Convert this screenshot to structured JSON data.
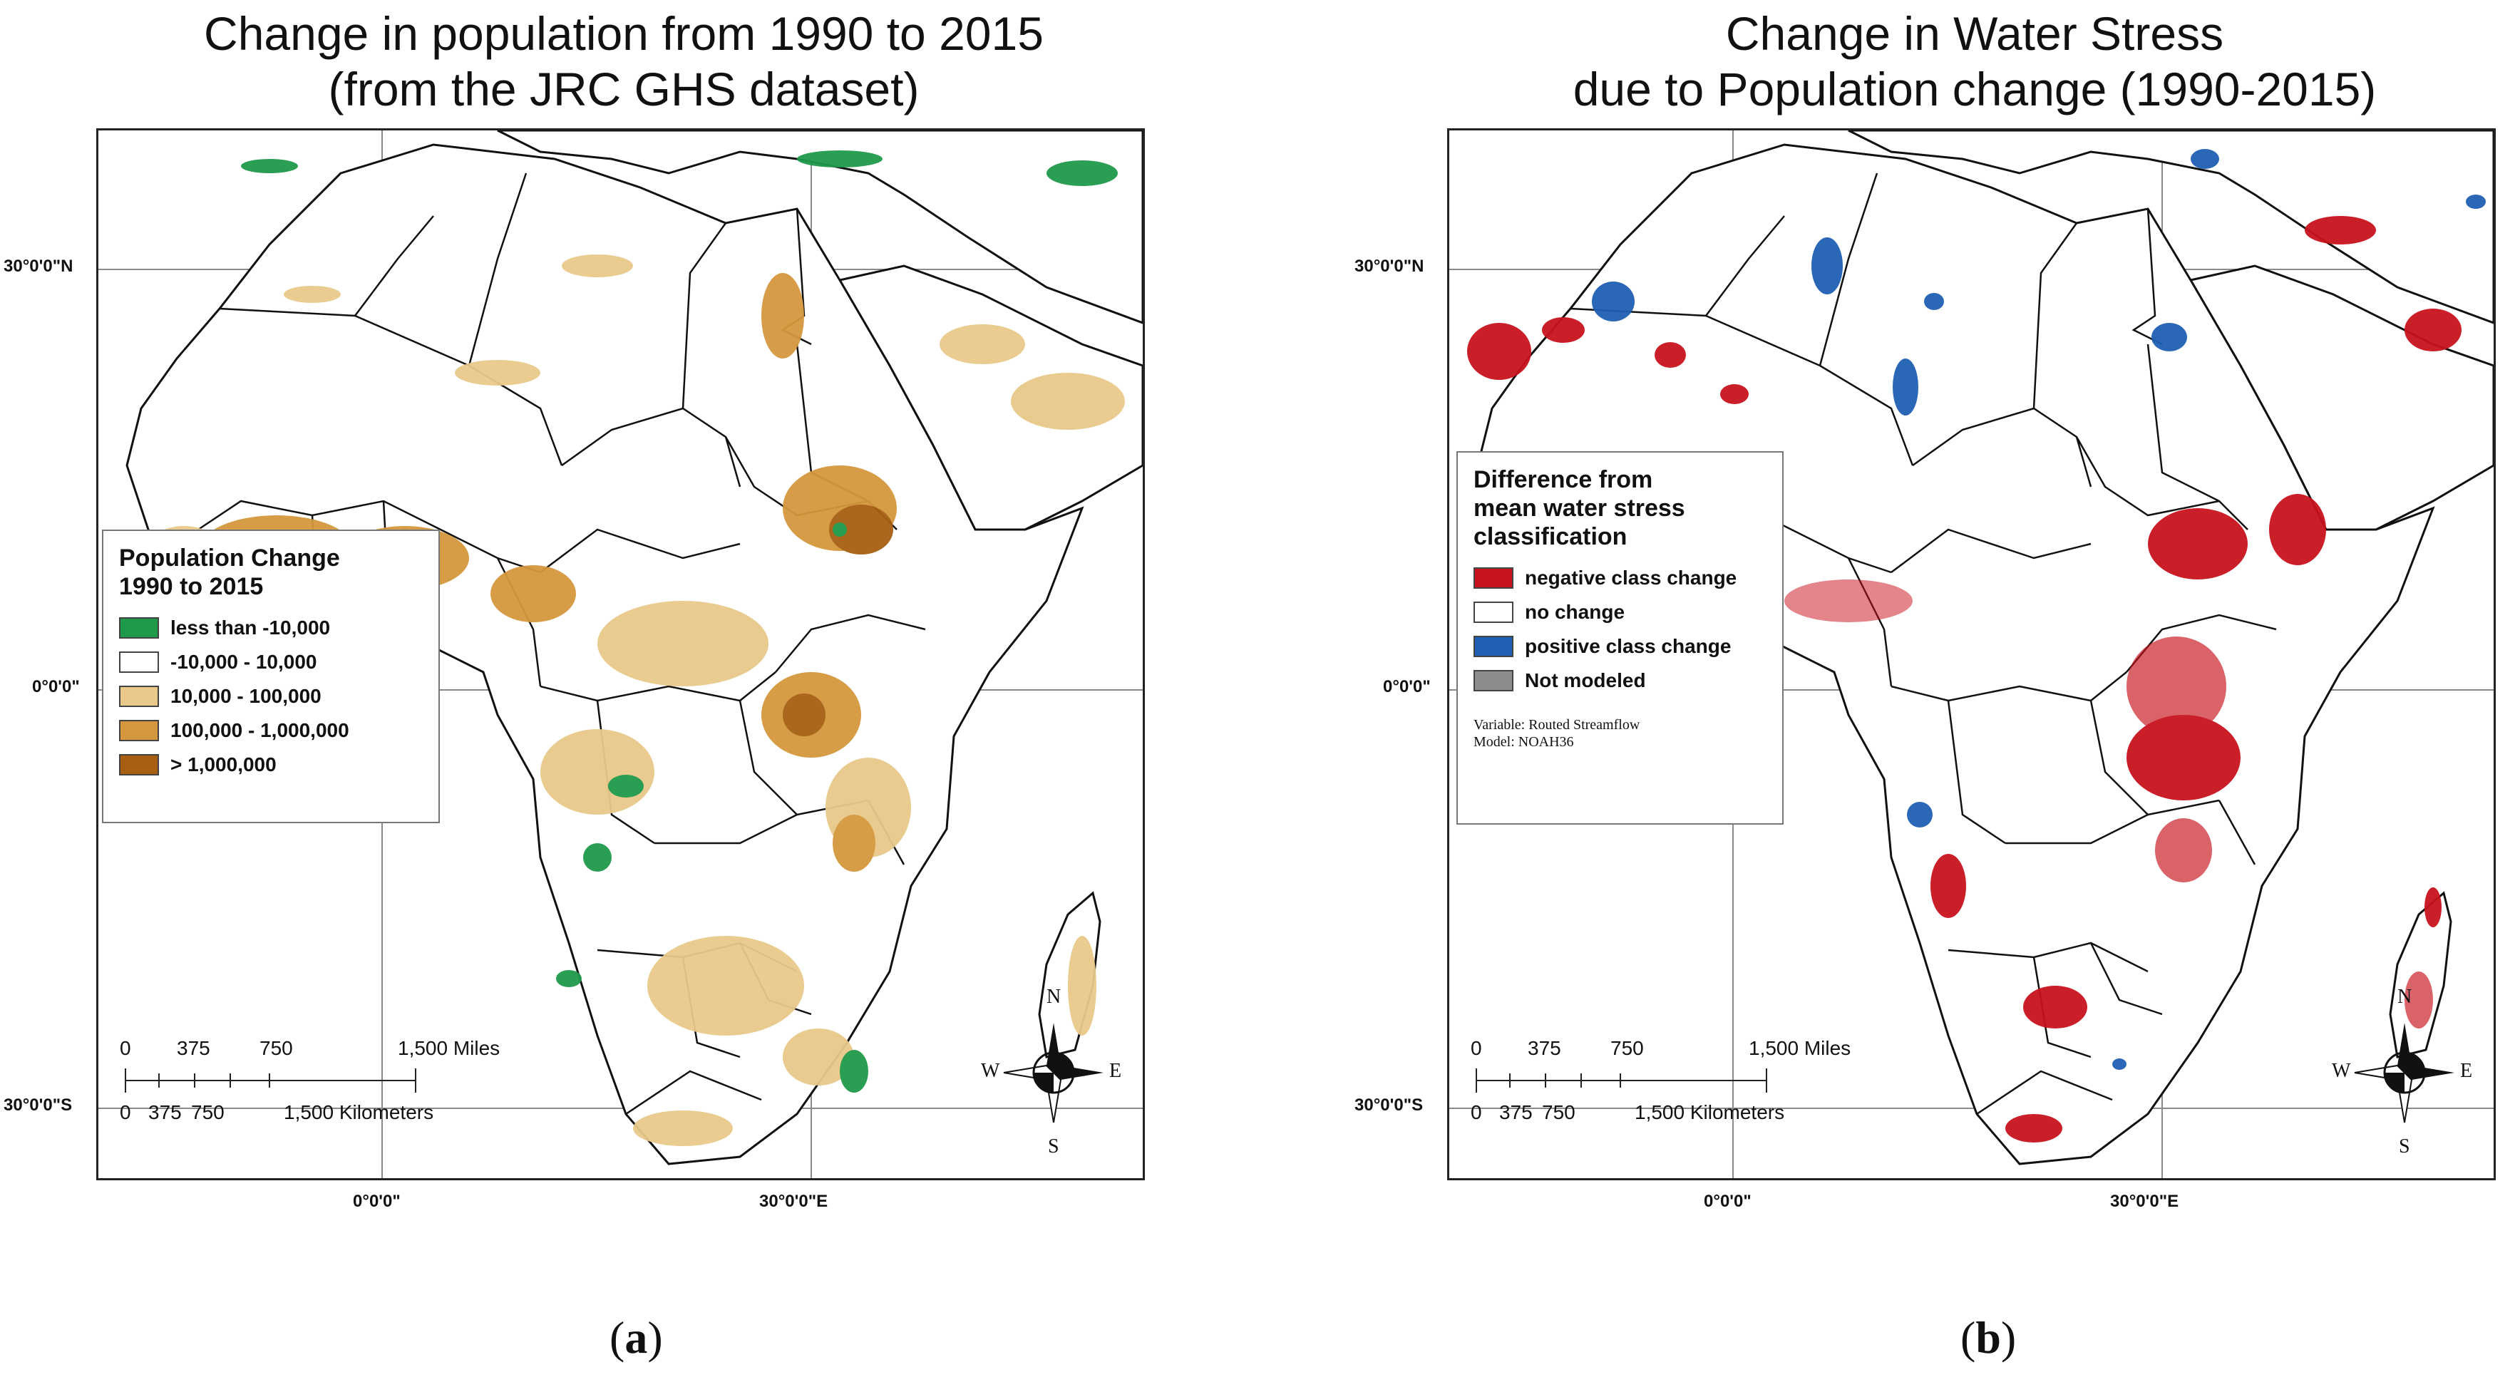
{
  "panels": [
    {
      "title_line1": "Change in population from 1990 to 2015",
      "title_line2": "(from the JRC GHS dataset)",
      "legend": {
        "title_line1": "Population Change",
        "title_line2": "1990 to 2015",
        "items": [
          {
            "label": "less than -10,000",
            "color": "#1f9a4a"
          },
          {
            "label": "-10,000 - 10,000",
            "color": "#ffffff"
          },
          {
            "label": "10,000 - 100,000",
            "color": "#e9c98a"
          },
          {
            "label": "100,000 - 1,000,000",
            "color": "#d4973d"
          },
          {
            "label": "> 1,000,000",
            "color": "#a85f12"
          }
        ]
      },
      "caption": "a"
    },
    {
      "title_line1": "Change in Water Stress",
      "title_line2": "due to Population change (1990-2015)",
      "legend": {
        "title_line1": "Difference from",
        "title_line2": "mean water stress",
        "title_line3": "classification",
        "items": [
          {
            "label": "negative class change",
            "color": "#c8141e"
          },
          {
            "label": "no change",
            "color": "#ffffff"
          },
          {
            "label": "positive class change",
            "color": "#1f5fb4"
          },
          {
            "label": "Not modeled",
            "color": "#8c8c8c"
          }
        ],
        "note_line1": "Variable: Routed Streamflow",
        "note_line2": "Model: NOAH36"
      },
      "caption": "b"
    }
  ],
  "graticule": {
    "lat_labels": [
      "30°0'0\"N",
      "0°0'0\"",
      "30°0'0\"S"
    ],
    "lon_labels": [
      "0°0'0\"",
      "30°0'0\"E"
    ]
  },
  "scalebar": {
    "miles_ticks": [
      "0",
      "375",
      "750",
      "1,500 Miles"
    ],
    "km_ticks": [
      "0",
      "375",
      "750",
      "1,500 Kilometers"
    ]
  },
  "compass": {
    "n": "N",
    "s": "S",
    "e": "E",
    "w": "W"
  }
}
